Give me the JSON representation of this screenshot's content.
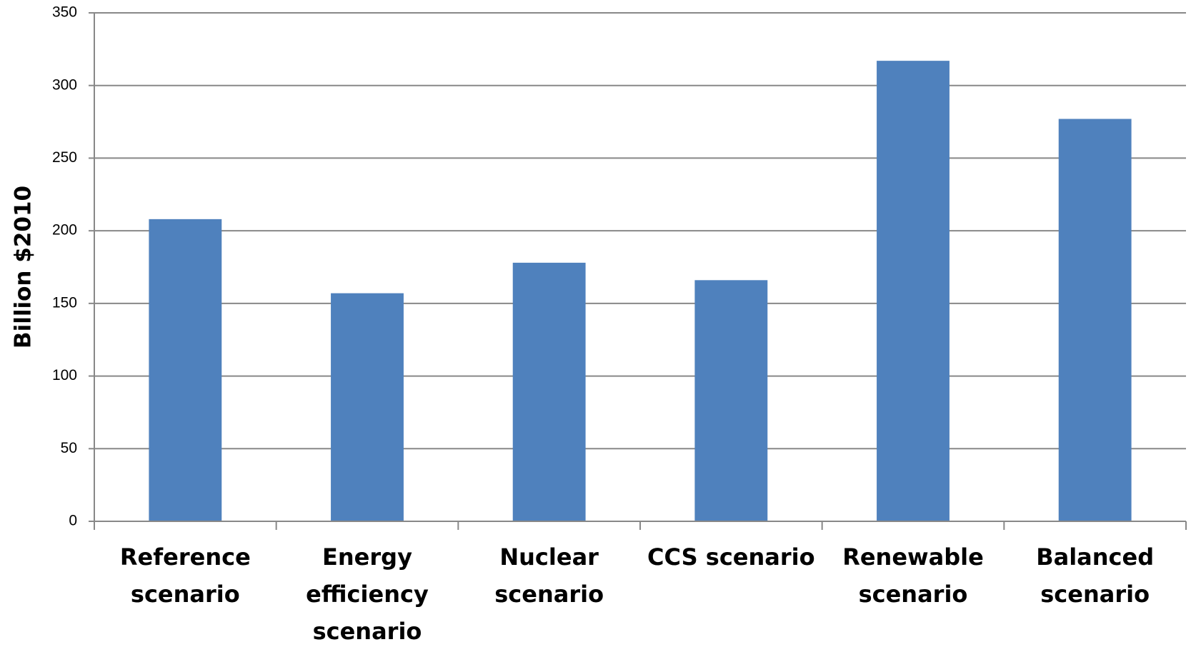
{
  "chart_data": {
    "type": "bar",
    "y_label": "Billion $2010",
    "categories": [
      "Reference scenario",
      "Energy efficiency scenario",
      "Nuclear scenario",
      "CCS scenario",
      "Renewable scenario",
      "Balanced scenario"
    ],
    "values": [
      208,
      157,
      178,
      166,
      317,
      277
    ],
    "color": "#4f81bd",
    "ylim": [
      0,
      350
    ],
    "yticks": [
      0,
      50,
      100,
      150,
      200,
      250,
      300,
      350
    ],
    "grid": true
  }
}
